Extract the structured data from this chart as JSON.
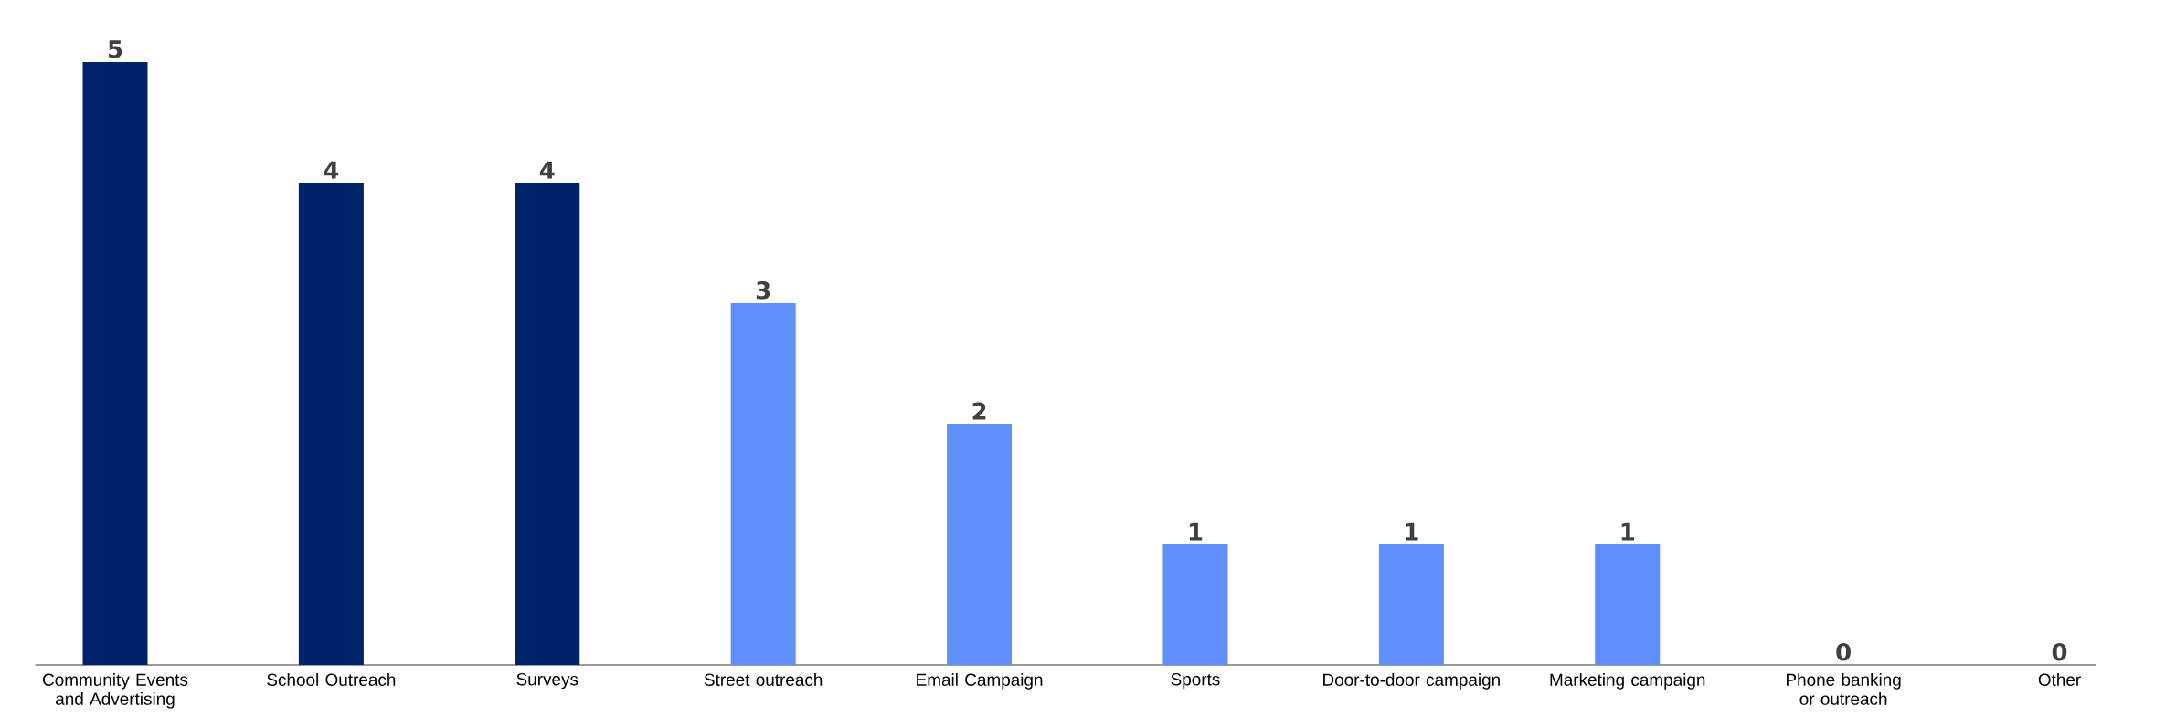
{
  "chart_data": {
    "type": "bar",
    "categories": [
      "Community Events and Advertising",
      "School Outreach",
      "Surveys",
      "Street outreach",
      "Email Campaign",
      "Sports",
      "Door-to-door campaign",
      "Marketing campaign",
      "Phone banking or outreach",
      "Other"
    ],
    "values": [
      5,
      4,
      4,
      3,
      2,
      1,
      1,
      1,
      0,
      0
    ],
    "colors": [
      "#00226a",
      "#00226a",
      "#00226a",
      "#5f8ffa",
      "#5f8ffa",
      "#5f8ffa",
      "#5f8ffa",
      "#5f8ffa",
      "#5f8ffa",
      "#5f8ffa"
    ],
    "data_labels": true
  }
}
